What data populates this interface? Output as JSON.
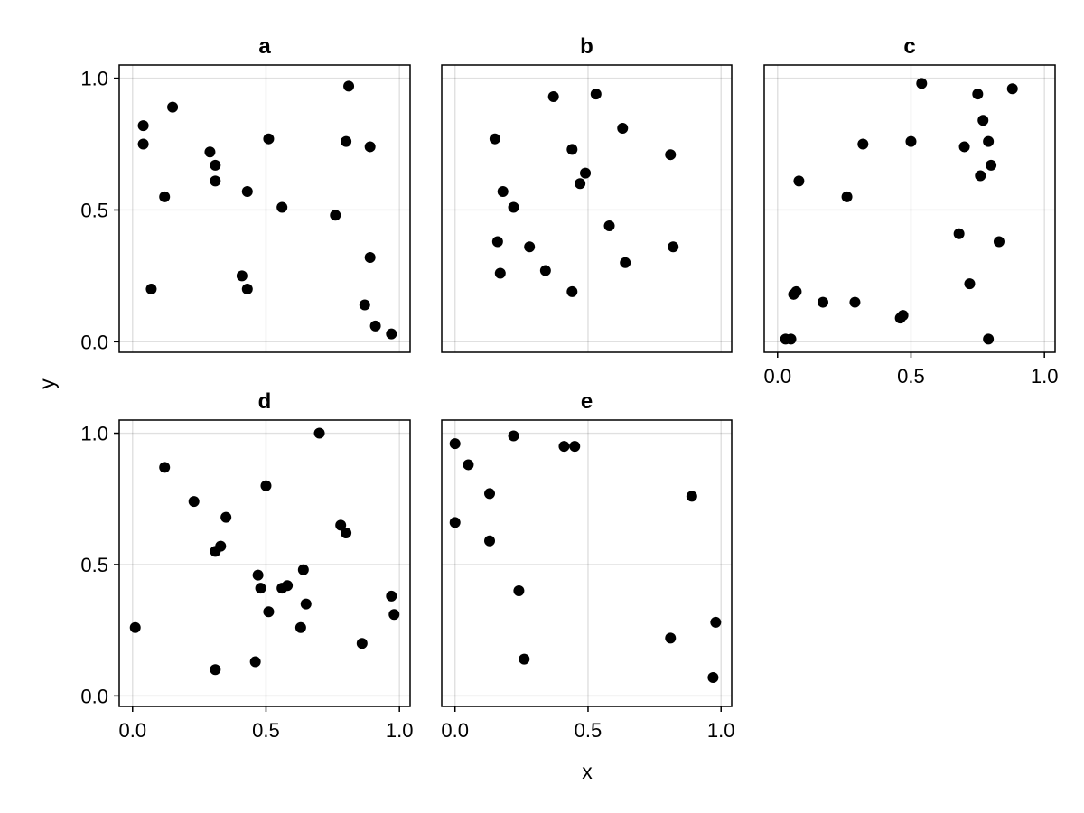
{
  "chart_data": {
    "type": "scatter",
    "xlabel": "x",
    "ylabel": "y",
    "xlim": [
      -0.05,
      1.04
    ],
    "ylim": [
      -0.04,
      1.05
    ],
    "x_ticks": [
      "0.0",
      "0.5",
      "1.0"
    ],
    "y_ticks": [
      "0.0",
      "0.5",
      "1.0"
    ],
    "grid": true,
    "legend": "none",
    "marker_color": "#000000",
    "panels": [
      {
        "title": "a",
        "points": [
          [
            0.04,
            0.82
          ],
          [
            0.04,
            0.75
          ],
          [
            0.15,
            0.89
          ],
          [
            0.12,
            0.55
          ],
          [
            0.07,
            0.2
          ],
          [
            0.29,
            0.72
          ],
          [
            0.31,
            0.67
          ],
          [
            0.31,
            0.61
          ],
          [
            0.43,
            0.57
          ],
          [
            0.41,
            0.25
          ],
          [
            0.43,
            0.2
          ],
          [
            0.51,
            0.77
          ],
          [
            0.56,
            0.51
          ],
          [
            0.76,
            0.48
          ],
          [
            0.8,
            0.76
          ],
          [
            0.81,
            0.97
          ],
          [
            0.89,
            0.74
          ],
          [
            0.89,
            0.32
          ],
          [
            0.87,
            0.14
          ],
          [
            0.91,
            0.06
          ],
          [
            0.97,
            0.03
          ]
        ]
      },
      {
        "title": "b",
        "points": [
          [
            0.15,
            0.77
          ],
          [
            0.16,
            0.38
          ],
          [
            0.17,
            0.26
          ],
          [
            0.18,
            0.57
          ],
          [
            0.22,
            0.51
          ],
          [
            0.28,
            0.36
          ],
          [
            0.34,
            0.27
          ],
          [
            0.37,
            0.93
          ],
          [
            0.44,
            0.73
          ],
          [
            0.47,
            0.6
          ],
          [
            0.49,
            0.64
          ],
          [
            0.44,
            0.19
          ],
          [
            0.53,
            0.94
          ],
          [
            0.58,
            0.44
          ],
          [
            0.63,
            0.81
          ],
          [
            0.64,
            0.3
          ],
          [
            0.81,
            0.71
          ],
          [
            0.82,
            0.36
          ]
        ]
      },
      {
        "title": "c",
        "points": [
          [
            0.03,
            0.01
          ],
          [
            0.05,
            0.01
          ],
          [
            0.06,
            0.18
          ],
          [
            0.07,
            0.19
          ],
          [
            0.08,
            0.61
          ],
          [
            0.17,
            0.15
          ],
          [
            0.26,
            0.55
          ],
          [
            0.29,
            0.15
          ],
          [
            0.32,
            0.75
          ],
          [
            0.46,
            0.09
          ],
          [
            0.47,
            0.1
          ],
          [
            0.5,
            0.76
          ],
          [
            0.54,
            0.98
          ],
          [
            0.68,
            0.41
          ],
          [
            0.7,
            0.74
          ],
          [
            0.72,
            0.22
          ],
          [
            0.75,
            0.94
          ],
          [
            0.76,
            0.63
          ],
          [
            0.77,
            0.84
          ],
          [
            0.79,
            0.76
          ],
          [
            0.8,
            0.67
          ],
          [
            0.79,
            0.01
          ],
          [
            0.83,
            0.38
          ],
          [
            0.88,
            0.96
          ]
        ]
      },
      {
        "title": "d",
        "points": [
          [
            0.01,
            0.26
          ],
          [
            0.12,
            0.87
          ],
          [
            0.23,
            0.74
          ],
          [
            0.35,
            0.68
          ],
          [
            0.31,
            0.55
          ],
          [
            0.33,
            0.57
          ],
          [
            0.31,
            0.1
          ],
          [
            0.47,
            0.46
          ],
          [
            0.48,
            0.41
          ],
          [
            0.46,
            0.13
          ],
          [
            0.5,
            0.8
          ],
          [
            0.51,
            0.32
          ],
          [
            0.56,
            0.41
          ],
          [
            0.58,
            0.42
          ],
          [
            0.64,
            0.48
          ],
          [
            0.65,
            0.35
          ],
          [
            0.63,
            0.26
          ],
          [
            0.7,
            1.0
          ],
          [
            0.78,
            0.65
          ],
          [
            0.8,
            0.62
          ],
          [
            0.86,
            0.2
          ],
          [
            0.97,
            0.38
          ],
          [
            0.98,
            0.31
          ]
        ]
      },
      {
        "title": "e",
        "points": [
          [
            0.0,
            0.96
          ],
          [
            0.0,
            0.66
          ],
          [
            0.05,
            0.88
          ],
          [
            0.13,
            0.77
          ],
          [
            0.13,
            0.59
          ],
          [
            0.22,
            0.99
          ],
          [
            0.24,
            0.4
          ],
          [
            0.26,
            0.14
          ],
          [
            0.41,
            0.95
          ],
          [
            0.45,
            0.95
          ],
          [
            0.81,
            0.22
          ],
          [
            0.89,
            0.76
          ],
          [
            0.97,
            0.07
          ],
          [
            0.98,
            0.28
          ]
        ]
      }
    ]
  }
}
